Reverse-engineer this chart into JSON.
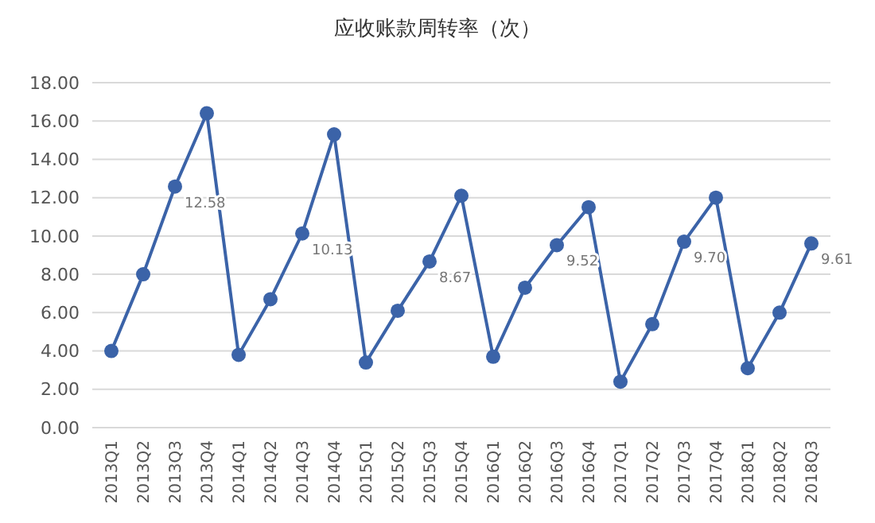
{
  "chart_data": {
    "type": "line",
    "title": "应收账款周转率（次）",
    "categories": [
      "2013Q1",
      "2013Q2",
      "2013Q3",
      "2013Q4",
      "2014Q1",
      "2014Q2",
      "2014Q3",
      "2014Q4",
      "2015Q1",
      "2015Q2",
      "2015Q3",
      "2015Q4",
      "2016Q1",
      "2016Q2",
      "2016Q3",
      "2016Q4",
      "2017Q1",
      "2017Q2",
      "2017Q3",
      "2017Q4",
      "2018Q1",
      "2018Q2",
      "2018Q3"
    ],
    "values": [
      4.0,
      8.0,
      12.58,
      16.4,
      3.8,
      6.7,
      10.13,
      15.3,
      3.4,
      6.1,
      8.67,
      12.1,
      3.7,
      7.3,
      9.52,
      11.5,
      2.4,
      5.4,
      9.7,
      12.0,
      3.1,
      6.0,
      9.61
    ],
    "value_labels": [
      null,
      null,
      "12.58",
      null,
      null,
      null,
      "10.13",
      null,
      null,
      null,
      "8.67",
      null,
      null,
      null,
      "9.52",
      null,
      null,
      null,
      "9.70",
      null,
      null,
      null,
      "9.61"
    ],
    "color": "#3b63a8",
    "marker": "circle",
    "line_style": "solid",
    "ylim": [
      0,
      18
    ],
    "yticks": [
      {
        "value": 0,
        "label": "0.00"
      },
      {
        "value": 2,
        "label": "2.00"
      },
      {
        "value": 4,
        "label": "4.00"
      },
      {
        "value": 6,
        "label": "6.00"
      },
      {
        "value": 8,
        "label": "8.00"
      },
      {
        "value": 10,
        "label": "10.00"
      },
      {
        "value": 12,
        "label": "12.00"
      },
      {
        "value": 14,
        "label": "14.00"
      },
      {
        "value": 16,
        "label": "16.00"
      },
      {
        "value": 18,
        "label": "18.00"
      }
    ],
    "grid": "y"
  }
}
